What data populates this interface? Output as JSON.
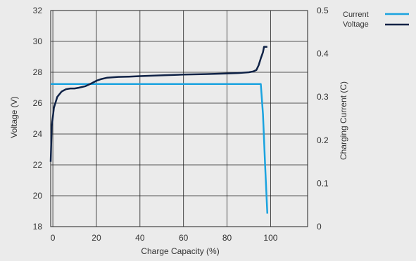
{
  "chart_data": {
    "type": "line",
    "xlabel": "Charge Capacity (%)",
    "ylabel_left": "Voltage (V)",
    "ylabel_right": "Charging Current (C)",
    "x_ticks": [
      "0",
      "20",
      "40",
      "60",
      "80",
      "100"
    ],
    "x_tick_values": [
      0,
      20,
      40,
      60,
      80,
      100
    ],
    "xlim": [
      -1,
      117
    ],
    "y_left_ticks": [
      "18",
      "20",
      "22",
      "24",
      "26",
      "28",
      "30",
      "32"
    ],
    "y_left_tick_values": [
      18,
      20,
      22,
      24,
      26,
      28,
      30,
      32
    ],
    "ylim_left": [
      18,
      32
    ],
    "y_right_ticks": [
      "0",
      "0.1",
      "0.2",
      "0.3",
      "0.4",
      "0.5"
    ],
    "y_right_tick_values": [
      0,
      0.1,
      0.2,
      0.3,
      0.4,
      0.5
    ],
    "ylim_right": [
      0,
      0.5
    ],
    "grid": true,
    "legend_position": "top-right",
    "series": [
      {
        "name": "Current",
        "axis": "right",
        "color": "#1ba3df",
        "x": [
          -1,
          95.5,
          96.5,
          97.5,
          98.5
        ],
        "y": [
          0.33,
          0.33,
          0.26,
          0.14,
          0.03
        ]
      },
      {
        "name": "Voltage",
        "axis": "left",
        "color": "#0f2246",
        "x": [
          -1,
          -0.5,
          0.5,
          2,
          4,
          6,
          8,
          10,
          12,
          15,
          18,
          20,
          22,
          25,
          30,
          35,
          40,
          50,
          60,
          70,
          80,
          85,
          90,
          92,
          93.5,
          94.5,
          95.5,
          96.5,
          97,
          98.5
        ],
        "y": [
          22.2,
          24.5,
          25.7,
          26.4,
          26.75,
          26.9,
          26.95,
          26.95,
          27.0,
          27.1,
          27.3,
          27.45,
          27.55,
          27.65,
          27.7,
          27.72,
          27.75,
          27.8,
          27.85,
          27.88,
          27.92,
          27.95,
          28.0,
          28.05,
          28.15,
          28.45,
          28.9,
          29.3,
          29.65,
          29.65
        ]
      }
    ]
  }
}
